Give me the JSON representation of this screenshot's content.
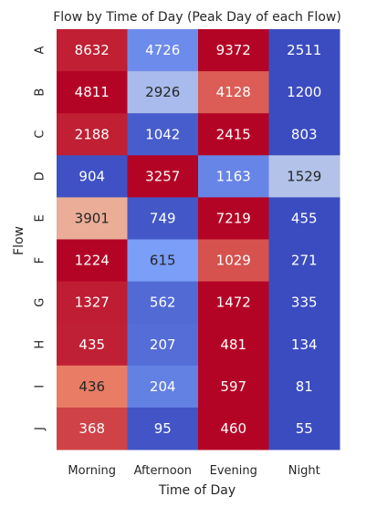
{
  "chart_data": {
    "type": "heatmap",
    "title": "Flow by Time of Day (Peak Day of each Flow)",
    "xlabel": "Time of Day",
    "ylabel": "Flow",
    "columns": [
      "Morning",
      "Afternoon",
      "Evening",
      "Night"
    ],
    "rows": [
      "A",
      "B",
      "C",
      "D",
      "E",
      "F",
      "G",
      "H",
      "I",
      "J"
    ],
    "values": [
      [
        8632,
        4726,
        9372,
        2511
      ],
      [
        4811,
        2926,
        4128,
        1200
      ],
      [
        2188,
        1042,
        2415,
        803
      ],
      [
        904,
        3257,
        1163,
        1529
      ],
      [
        3901,
        749,
        7219,
        455
      ],
      [
        1224,
        615,
        1029,
        271
      ],
      [
        1327,
        562,
        1472,
        335
      ],
      [
        435,
        207,
        481,
        134
      ],
      [
        436,
        204,
        597,
        81
      ],
      [
        368,
        95,
        460,
        55
      ]
    ],
    "colormap": "coolwarm (row-normalized)",
    "annotated": true,
    "colorbar": false
  }
}
